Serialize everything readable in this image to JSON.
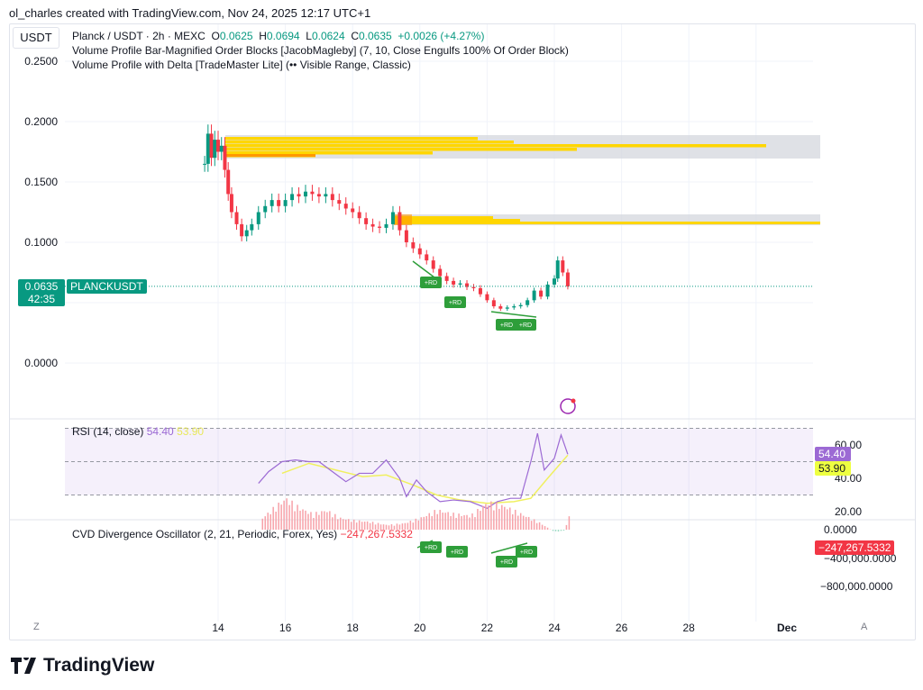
{
  "credit": "ol_charles created with TradingView.com, Nov 24, 2025 12:17 UTC+1",
  "currency": "USDT",
  "legend": {
    "symbol": "Planck / USDT · 2h · MEXC",
    "o_label": "O",
    "o": "0.0625",
    "h_label": "H",
    "h": "0.0694",
    "l_label": "L",
    "l": "0.0624",
    "c_label": "C",
    "c": "0.0635",
    "change": "+0.0026 (+4.27%)",
    "indicator1": "Volume Profile Bar-Magnified Order Blocks [JacobMagleby] (7, 10, Close Engulfs 100% Of Order Block)",
    "indicator2": "Volume Profile with Delta [TradeMaster Lite] (•• Visible Range, Classic)"
  },
  "price_axis": [
    "0.2500",
    "0.2000",
    "0.1500",
    "0.1000",
    "0.0000"
  ],
  "last_price": {
    "value": "0.0635",
    "countdown": "42:35",
    "symbol": "PLANCKUSDT"
  },
  "rsi": {
    "title": "RSI (14, close)",
    "value": "54.40",
    "ma": "53.90",
    "axis": [
      "60.00",
      "40.00",
      "20.00"
    ]
  },
  "cvd": {
    "title": "CVD Divergence Oscillator (2, 21, Periodic, Forex, Yes)",
    "value": "−247,267.5332",
    "axis": [
      "0.0000",
      "−400,000.0000",
      "−800,000.0000"
    ]
  },
  "time_axis": [
    "14",
    "16",
    "18",
    "20",
    "22",
    "24",
    "26",
    "28",
    "Dec"
  ],
  "divergence_label": "+RD",
  "scale_buttons": {
    "left": "Z",
    "right": "A"
  },
  "brand": "TradingView",
  "colors": {
    "up": "#089981",
    "down": "#f23645",
    "rsi": "#9c6ad4",
    "rsi_ma": "#f0f060",
    "vp": "#ffd600",
    "vp_dark": "#ff9800",
    "box": "#d1d4dc",
    "div": "#2e9e3a"
  },
  "chart_data": {
    "type": "candlestick",
    "x_unit": "day of Nov 2025",
    "price": [
      [
        13.6,
        0.165
      ],
      [
        13.7,
        0.19
      ],
      [
        13.8,
        0.17
      ],
      [
        13.9,
        0.185
      ],
      [
        14.0,
        0.175
      ],
      [
        14.1,
        0.18
      ],
      [
        14.2,
        0.16
      ],
      [
        14.3,
        0.14
      ],
      [
        14.4,
        0.125
      ],
      [
        14.55,
        0.115
      ],
      [
        14.7,
        0.105
      ],
      [
        14.85,
        0.11
      ],
      [
        15.0,
        0.115
      ],
      [
        15.2,
        0.125
      ],
      [
        15.4,
        0.13
      ],
      [
        15.6,
        0.135
      ],
      [
        15.8,
        0.13
      ],
      [
        16.0,
        0.135
      ],
      [
        16.2,
        0.14
      ],
      [
        16.4,
        0.138
      ],
      [
        16.6,
        0.142
      ],
      [
        16.8,
        0.14
      ],
      [
        17.0,
        0.138
      ],
      [
        17.2,
        0.14
      ],
      [
        17.4,
        0.135
      ],
      [
        17.6,
        0.132
      ],
      [
        17.8,
        0.128
      ],
      [
        18.0,
        0.125
      ],
      [
        18.2,
        0.12
      ],
      [
        18.4,
        0.115
      ],
      [
        18.6,
        0.113
      ],
      [
        18.8,
        0.112
      ],
      [
        19.0,
        0.115
      ],
      [
        19.2,
        0.125
      ],
      [
        19.4,
        0.11
      ],
      [
        19.6,
        0.1
      ],
      [
        19.8,
        0.095
      ],
      [
        20.0,
        0.09
      ],
      [
        20.2,
        0.085
      ],
      [
        20.4,
        0.078
      ],
      [
        20.6,
        0.072
      ],
      [
        20.8,
        0.068
      ],
      [
        21.0,
        0.065
      ],
      [
        21.2,
        0.066
      ],
      [
        21.4,
        0.063
      ],
      [
        21.6,
        0.062
      ],
      [
        21.8,
        0.057
      ],
      [
        22.0,
        0.052
      ],
      [
        22.2,
        0.047
      ],
      [
        22.4,
        0.045
      ],
      [
        22.6,
        0.046
      ],
      [
        22.8,
        0.047
      ],
      [
        23.0,
        0.048
      ],
      [
        23.2,
        0.052
      ],
      [
        23.4,
        0.06
      ],
      [
        23.6,
        0.055
      ],
      [
        23.8,
        0.065
      ],
      [
        24.0,
        0.07
      ],
      [
        24.1,
        0.085
      ],
      [
        24.25,
        0.075
      ],
      [
        24.4,
        0.0635
      ]
    ],
    "rsi": [
      [
        15.2,
        37
      ],
      [
        15.5,
        44
      ],
      [
        15.9,
        50
      ],
      [
        16.3,
        51
      ],
      [
        16.7,
        50
      ],
      [
        17.0,
        50
      ],
      [
        17.4,
        44
      ],
      [
        17.8,
        38
      ],
      [
        18.2,
        43
      ],
      [
        18.6,
        43
      ],
      [
        19.0,
        51
      ],
      [
        19.4,
        40
      ],
      [
        19.6,
        29
      ],
      [
        19.9,
        39
      ],
      [
        20.2,
        32
      ],
      [
        20.6,
        26
      ],
      [
        21.0,
        27
      ],
      [
        21.5,
        26
      ],
      [
        22.0,
        22
      ],
      [
        22.3,
        26
      ],
      [
        22.7,
        28
      ],
      [
        23.0,
        28
      ],
      [
        23.3,
        50
      ],
      [
        23.5,
        67
      ],
      [
        23.7,
        45
      ],
      [
        24.0,
        52
      ],
      [
        24.2,
        66
      ],
      [
        24.4,
        54.4
      ]
    ],
    "rsi_ma": [
      [
        15.9,
        43
      ],
      [
        16.7,
        49
      ],
      [
        17.5,
        45
      ],
      [
        18.3,
        41
      ],
      [
        19.0,
        42
      ],
      [
        19.8,
        36
      ],
      [
        20.5,
        30
      ],
      [
        21.2,
        27
      ],
      [
        22.0,
        25
      ],
      [
        22.8,
        26
      ],
      [
        23.3,
        28
      ],
      [
        23.8,
        40
      ],
      [
        24.4,
        53.9
      ]
    ],
    "cvd": [
      [
        15.3,
        -150000
      ],
      [
        15.7,
        -300000
      ],
      [
        16.0,
        -400000
      ],
      [
        16.4,
        -280000
      ],
      [
        16.8,
        -200000
      ],
      [
        17.2,
        -250000
      ],
      [
        17.6,
        -150000
      ],
      [
        18.0,
        -120000
      ],
      [
        18.5,
        -100000
      ],
      [
        19.0,
        -60000
      ],
      [
        19.5,
        -80000
      ],
      [
        20.0,
        -150000
      ],
      [
        20.5,
        -250000
      ],
      [
        21.0,
        -200000
      ],
      [
        21.5,
        -180000
      ],
      [
        22.0,
        -350000
      ],
      [
        22.5,
        -300000
      ],
      [
        23.0,
        -200000
      ],
      [
        23.5,
        -100000
      ],
      [
        23.8,
        -20000
      ],
      [
        24.0,
        30000
      ],
      [
        24.3,
        10000
      ],
      [
        24.45,
        -247267.5332
      ]
    ],
    "rsi_bands": [
      70,
      30
    ],
    "ylim": [
      0,
      0.25
    ]
  }
}
